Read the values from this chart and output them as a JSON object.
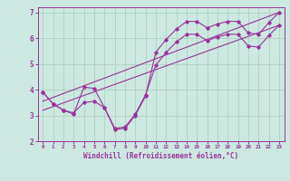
{
  "xlabel": "Windchill (Refroidissement éolien,°C)",
  "background_color": "#cce8e0",
  "grid_color": "#aaccbb",
  "line_color": "#993399",
  "xlim": [
    -0.5,
    23.5
  ],
  "ylim": [
    2,
    7.2
  ],
  "xticks": [
    0,
    1,
    2,
    3,
    4,
    5,
    6,
    7,
    8,
    9,
    10,
    11,
    12,
    13,
    14,
    15,
    16,
    17,
    18,
    19,
    20,
    21,
    22,
    23
  ],
  "yticks": [
    2,
    3,
    4,
    5,
    6,
    7
  ],
  "line1_x": [
    0,
    1,
    2,
    3,
    4,
    5,
    6,
    7,
    8,
    9,
    10,
    11,
    12,
    13,
    14,
    15,
    16,
    17,
    18,
    19,
    20,
    21,
    22,
    23
  ],
  "line1_y": [
    3.9,
    3.45,
    3.2,
    3.05,
    4.1,
    4.05,
    3.3,
    2.45,
    2.5,
    3.0,
    3.75,
    5.45,
    5.95,
    6.35,
    6.65,
    6.65,
    6.4,
    6.55,
    6.65,
    6.65,
    6.2,
    6.15,
    6.6,
    7.0
  ],
  "line2_x": [
    0,
    1,
    2,
    3,
    4,
    5,
    6,
    7,
    8,
    9,
    10,
    11,
    12,
    13,
    14,
    15,
    16,
    17,
    18,
    19,
    20,
    21,
    22,
    23
  ],
  "line2_y": [
    3.9,
    3.45,
    3.2,
    3.1,
    3.5,
    3.55,
    3.3,
    2.5,
    2.55,
    3.05,
    3.8,
    4.95,
    5.45,
    5.85,
    6.15,
    6.15,
    5.9,
    6.05,
    6.15,
    6.15,
    5.7,
    5.65,
    6.1,
    6.5
  ],
  "line3_x": [
    0,
    23
  ],
  "line3_y": [
    3.55,
    7.0
  ],
  "line4_x": [
    0,
    23
  ],
  "line4_y": [
    3.2,
    6.5
  ]
}
